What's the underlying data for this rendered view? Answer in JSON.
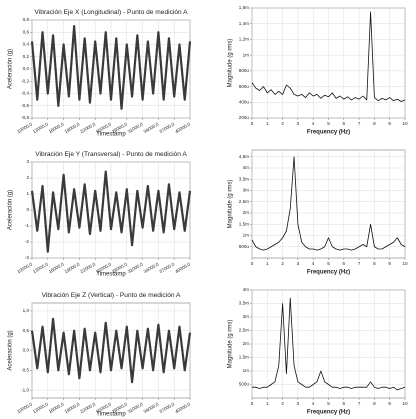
{
  "chart_data": [
    {
      "type": "line",
      "title": "Vibración Eje X (Longitudinal) - Punto de medición A",
      "x_label": "Timestamp",
      "y_label": "Aceleración (g)",
      "color": "#3a3a3a",
      "grid": true,
      "x": [
        10000,
        11000,
        12000,
        13000,
        14000,
        15000,
        16000,
        17000,
        18000,
        19000,
        20000,
        21000,
        22000,
        23000,
        24000,
        25000,
        26000,
        27000,
        28000,
        29000,
        30000,
        31000,
        32000,
        33000,
        34000,
        35000,
        36000,
        37000,
        38000,
        39000,
        40000
      ],
      "values": [
        0.45,
        -0.5,
        0.6,
        -0.4,
        0.55,
        -0.6,
        0.4,
        -0.45,
        0.7,
        -0.5,
        0.5,
        -0.55,
        0.45,
        -0.4,
        0.6,
        -0.5,
        0.5,
        -0.65,
        0.4,
        -0.45,
        0.55,
        -0.5,
        0.45,
        -0.4,
        0.6,
        -0.5,
        0.5,
        -0.45,
        0.4,
        -0.5,
        0.45
      ],
      "xlim": [
        10000,
        40000
      ],
      "xticks": [
        {
          "value": 10000,
          "label": "10000,0"
        },
        {
          "value": 13000,
          "label": "13000,0"
        },
        {
          "value": 16000,
          "label": "16000,0"
        },
        {
          "value": 19000,
          "label": "19000,0"
        },
        {
          "value": 22000,
          "label": "22000,0"
        },
        {
          "value": 25000,
          "label": "25000,0"
        },
        {
          "value": 28000,
          "label": "28000,0"
        },
        {
          "value": 31000,
          "label": "31000,0"
        },
        {
          "value": 34000,
          "label": "34000,0"
        },
        {
          "value": 37000,
          "label": "37000,0"
        },
        {
          "value": 40000,
          "label": "40000,0"
        }
      ],
      "ylim": [
        -0.8,
        0.8
      ],
      "yticks": [
        {
          "value": 0.8,
          "label": "0,8"
        },
        {
          "value": 0.6,
          "label": "0,6"
        },
        {
          "value": 0.4,
          "label": "0,4"
        },
        {
          "value": 0.2,
          "label": "0,2"
        },
        {
          "value": 0,
          "label": "0,0"
        },
        {
          "value": -0.2,
          "label": "-0,2"
        },
        {
          "value": -0.4,
          "label": "-0,4"
        },
        {
          "value": -0.6,
          "label": "-0,6"
        },
        {
          "value": -0.8,
          "label": "-0,8"
        }
      ]
    },
    {
      "type": "line",
      "x_label": "Frequency (Hz)",
      "y_label": "Magnitude (g rms)",
      "color": "#111111",
      "grid": true,
      "x": [
        0,
        0.25,
        0.5,
        0.75,
        1,
        1.25,
        1.5,
        1.75,
        2,
        2.25,
        2.5,
        2.75,
        3,
        3.25,
        3.5,
        3.75,
        4,
        4.25,
        4.5,
        4.75,
        5,
        5.25,
        5.5,
        5.75,
        6,
        6.25,
        6.5,
        6.75,
        7,
        7.25,
        7.5,
        7.75,
        8,
        8.25,
        8.5,
        8.75,
        9,
        9.25,
        9.5,
        9.75,
        10
      ],
      "values": [
        0.00065,
        0.00058,
        0.00055,
        0.0006,
        0.00052,
        0.00056,
        0.0005,
        0.00054,
        0.0005,
        0.00062,
        0.00058,
        0.0005,
        0.00048,
        0.0005,
        0.00046,
        0.00052,
        0.00048,
        0.0005,
        0.00045,
        0.00049,
        0.00047,
        0.00052,
        0.00045,
        0.00048,
        0.00044,
        0.00047,
        0.00043,
        0.00046,
        0.00044,
        0.00048,
        0.00043,
        0.00155,
        0.00046,
        0.00042,
        0.00045,
        0.00043,
        0.00046,
        0.00042,
        0.00044,
        0.00041,
        0.00043
      ],
      "xlim": [
        0,
        10
      ],
      "xticks": [
        0,
        1,
        2,
        3,
        4,
        5,
        6,
        7,
        8,
        9,
        10
      ],
      "ylim": [
        0.0002,
        0.0016
      ],
      "yticks": [
        {
          "value": 0.0002,
          "label": "200u"
        },
        {
          "value": 0.0004,
          "label": "400u"
        },
        {
          "value": 0.0006,
          "label": "600u"
        },
        {
          "value": 0.0008,
          "label": "800u"
        },
        {
          "value": 0.001,
          "label": "1m"
        },
        {
          "value": 0.0012,
          "label": "1,2m"
        },
        {
          "value": 0.0014,
          "label": "1,4m"
        },
        {
          "value": 0.0016,
          "label": "1,6m"
        }
      ]
    },
    {
      "type": "line",
      "title": "Vibración Eje Y (Transversal) - Punto de medición A",
      "x_label": "Timestamp",
      "y_label": "Aceleración (g)",
      "color": "#3a3a3a",
      "grid": true,
      "x": [
        10000,
        11000,
        12000,
        13000,
        14000,
        15000,
        16000,
        17000,
        18000,
        19000,
        20000,
        21000,
        22000,
        23000,
        24000,
        25000,
        26000,
        27000,
        28000,
        29000,
        30000,
        31000,
        32000,
        33000,
        34000,
        35000,
        36000,
        37000,
        38000,
        39000,
        40000
      ],
      "values": [
        1.2,
        -1.3,
        1.5,
        -2.6,
        1.1,
        -1.2,
        2.2,
        -1.4,
        1.3,
        -1.1,
        1.6,
        -1.5,
        1.2,
        -1.3,
        2.4,
        -1.2,
        1.1,
        -1.4,
        1.3,
        -2.2,
        1.2,
        -1.1,
        1.5,
        -1.3,
        1.2,
        -1.4,
        1.6,
        -1.2,
        1.1,
        -1.3,
        1.2
      ],
      "xlim": [
        10000,
        40000
      ],
      "xticks": [
        {
          "value": 10000,
          "label": "10000,0"
        },
        {
          "value": 13000,
          "label": "13000,0"
        },
        {
          "value": 16000,
          "label": "16000,0"
        },
        {
          "value": 19000,
          "label": "19000,0"
        },
        {
          "value": 22000,
          "label": "22000,0"
        },
        {
          "value": 25000,
          "label": "25000,0"
        },
        {
          "value": 28000,
          "label": "28000,0"
        },
        {
          "value": 31000,
          "label": "31000,0"
        },
        {
          "value": 34000,
          "label": "34000,0"
        },
        {
          "value": 37000,
          "label": "37000,0"
        },
        {
          "value": 40000,
          "label": "40000,0"
        }
      ],
      "ylim": [
        -3,
        3
      ],
      "yticks": [
        3,
        2,
        1,
        0,
        -1,
        -2,
        -3
      ]
    },
    {
      "type": "line",
      "x_label": "Frequency (Hz)",
      "y_label": "Magnitude (g rms)",
      "color": "#111111",
      "grid": true,
      "x": [
        0,
        0.25,
        0.5,
        0.75,
        1,
        1.25,
        1.5,
        1.75,
        2,
        2.25,
        2.5,
        2.75,
        3,
        3.25,
        3.5,
        3.75,
        4,
        4.25,
        4.5,
        4.75,
        5,
        5.25,
        5.5,
        5.75,
        6,
        6.25,
        6.5,
        6.75,
        7,
        7.25,
        7.5,
        7.75,
        8,
        8.25,
        8.5,
        8.75,
        9,
        9.25,
        9.5,
        9.75,
        10
      ],
      "values": [
        0.0008,
        0.0005,
        0.0004,
        0.00035,
        0.0004,
        0.0005,
        0.0006,
        0.0007,
        0.0009,
        0.0012,
        0.0022,
        0.0045,
        0.0015,
        0.0007,
        0.0005,
        0.0004,
        0.0004,
        0.00035,
        0.0004,
        0.0005,
        0.0009,
        0.0005,
        0.0004,
        0.00035,
        0.0004,
        0.0004,
        0.00035,
        0.0004,
        0.0005,
        0.0006,
        0.0005,
        0.0015,
        0.0005,
        0.0004,
        0.0004,
        0.0005,
        0.0006,
        0.0007,
        0.0009,
        0.0006,
        0.0005
      ],
      "xlim": [
        0,
        10
      ],
      "xticks": [
        0,
        1,
        2,
        3,
        4,
        5,
        6,
        7,
        8,
        9,
        10
      ],
      "ylim": [
        0,
        0.0048
      ],
      "yticks": [
        {
          "value": 0.0005,
          "label": "500u"
        },
        {
          "value": 0.001,
          "label": "1m"
        },
        {
          "value": 0.0015,
          "label": "1,5m"
        },
        {
          "value": 0.002,
          "label": "2m"
        },
        {
          "value": 0.0025,
          "label": "2,5m"
        },
        {
          "value": 0.003,
          "label": "3m"
        },
        {
          "value": 0.0035,
          "label": "3,5m"
        },
        {
          "value": 0.004,
          "label": "4m"
        },
        {
          "value": 0.0045,
          "label": "4,5m"
        }
      ]
    },
    {
      "type": "line",
      "title": "Vibración Eje Z (Vertical) - Punto de medición A",
      "x_label": "Timestamp",
      "y_label": "Aceleración (g)",
      "color": "#3a3a3a",
      "grid": true,
      "x": [
        10000,
        11000,
        12000,
        13000,
        14000,
        15000,
        16000,
        17000,
        18000,
        19000,
        20000,
        21000,
        22000,
        23000,
        24000,
        25000,
        26000,
        27000,
        28000,
        29000,
        30000,
        31000,
        32000,
        33000,
        34000,
        35000,
        36000,
        37000,
        38000,
        39000,
        40000
      ],
      "values": [
        0.5,
        -0.45,
        0.6,
        -0.55,
        0.8,
        -0.5,
        0.45,
        -0.6,
        0.5,
        -0.7,
        0.55,
        -0.5,
        0.45,
        -0.55,
        0.7,
        -0.5,
        0.5,
        -0.45,
        0.6,
        -0.8,
        0.5,
        -0.45,
        0.55,
        -0.5,
        0.65,
        -0.55,
        0.5,
        -0.45,
        0.6,
        -0.5,
        0.45
      ],
      "xlim": [
        10000,
        40000
      ],
      "xticks": [
        {
          "value": 10000,
          "label": "10000,0"
        },
        {
          "value": 13000,
          "label": "13000,0"
        },
        {
          "value": 16000,
          "label": "16000,0"
        },
        {
          "value": 19000,
          "label": "19000,0"
        },
        {
          "value": 22000,
          "label": "22000,0"
        },
        {
          "value": 25000,
          "label": "25000,0"
        },
        {
          "value": 28000,
          "label": "28000,0"
        },
        {
          "value": 31000,
          "label": "31000,0"
        },
        {
          "value": 34000,
          "label": "34000,0"
        },
        {
          "value": 37000,
          "label": "37000,0"
        },
        {
          "value": 40000,
          "label": "40000,0"
        }
      ],
      "ylim": [
        -1.2,
        1.2
      ],
      "yticks": [
        {
          "value": 1,
          "label": "1,0"
        },
        {
          "value": 0.5,
          "label": "0,5"
        },
        {
          "value": 0,
          "label": "0,0"
        },
        {
          "value": -0.5,
          "label": "-0,5"
        },
        {
          "value": -1,
          "label": "-1,0"
        }
      ]
    },
    {
      "type": "line",
      "x_label": "Frequency (Hz)",
      "y_label": "Magnitude (g rms)",
      "color": "#111111",
      "grid": true,
      "x": [
        0,
        0.25,
        0.5,
        0.75,
        1,
        1.25,
        1.5,
        1.75,
        2,
        2.25,
        2.5,
        2.75,
        3,
        3.25,
        3.5,
        3.75,
        4,
        4.25,
        4.5,
        4.75,
        5,
        5.25,
        5.5,
        5.75,
        6,
        6.25,
        6.5,
        6.75,
        7,
        7.25,
        7.5,
        7.75,
        8,
        8.25,
        8.5,
        8.75,
        9,
        9.25,
        9.5,
        9.75,
        10
      ],
      "values": [
        0.0004,
        0.0004,
        0.00035,
        0.0004,
        0.0004,
        0.0005,
        0.0006,
        0.0012,
        0.0035,
        0.0009,
        0.0037,
        0.0012,
        0.0006,
        0.0005,
        0.0004,
        0.0004,
        0.0005,
        0.0006,
        0.001,
        0.0006,
        0.0005,
        0.0004,
        0.0004,
        0.00035,
        0.0004,
        0.0004,
        0.00035,
        0.0004,
        0.0004,
        0.0004,
        0.0004,
        0.0006,
        0.0004,
        0.00035,
        0.0004,
        0.0004,
        0.00035,
        0.0004,
        0.0003,
        0.00035,
        0.0004
      ],
      "xlim": [
        0,
        10
      ],
      "xticks": [
        0,
        1,
        2,
        3,
        4,
        5,
        6,
        7,
        8,
        9,
        10
      ],
      "ylim": [
        0,
        0.004
      ],
      "yticks": [
        {
          "value": 0.0005,
          "label": "500u"
        },
        {
          "value": 0.001,
          "label": "1m"
        },
        {
          "value": 0.0015,
          "label": "1,5m"
        },
        {
          "value": 0.002,
          "label": "2m"
        },
        {
          "value": 0.0025,
          "label": "2,5m"
        },
        {
          "value": 0.003,
          "label": "3m"
        },
        {
          "value": 0.0035,
          "label": "3,5m"
        },
        {
          "value": 0.004,
          "label": "4m"
        }
      ]
    }
  ]
}
